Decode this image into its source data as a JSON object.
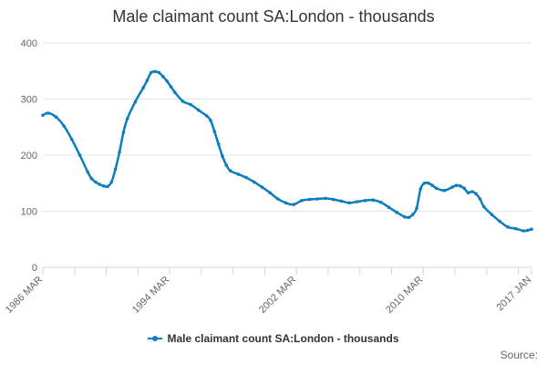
{
  "colors": {
    "series": "#0d7dbd",
    "grid": "#e6e6e6",
    "axis": "#ccd6eb",
    "text": "#666666"
  },
  "legend": {
    "label": "Male claimant count SA:London - thousands",
    "position": "bottom-center"
  },
  "credits": "Source:",
  "chart_data": {
    "type": "line",
    "title": "Male claimant count SA:London - thousands",
    "xlabel": "",
    "ylabel": "",
    "ylim": [
      0,
      400
    ],
    "yticks": [
      0,
      100,
      200,
      300,
      400
    ],
    "grid": true,
    "x_tick_labels": [
      "1986 MAR",
      "1994 MAR",
      "2002 MAR",
      "2010 MAR",
      "2017 JAN"
    ],
    "x_tick_values": [
      1986.17,
      1994.17,
      2002.17,
      2010.17,
      2017.0
    ],
    "series": [
      {
        "name": "Male claimant count SA:London - thousands",
        "x": [
          1986.17,
          1986.5,
          1987.0,
          1987.5,
          1988.0,
          1988.5,
          1989.0,
          1989.25,
          1989.5,
          1989.75,
          1990.0,
          1990.25,
          1990.5,
          1990.75,
          1991.0,
          1991.25,
          1991.5,
          1992.0,
          1992.5,
          1992.75,
          1993.0,
          1993.25,
          1993.5,
          1993.75,
          1994.0,
          1994.25,
          1994.5,
          1995.0,
          1995.5,
          1996.0,
          1996.5,
          1996.75,
          1997.0,
          1997.25,
          1997.5,
          1997.75,
          1998.0,
          1998.5,
          1999.0,
          1999.5,
          2000.0,
          2000.5,
          2001.0,
          2001.5,
          2002.0,
          2002.5,
          2003.0,
          2003.5,
          2004.0,
          2004.5,
          2005.0,
          2005.5,
          2006.0,
          2006.5,
          2007.0,
          2007.5,
          2008.0,
          2008.5,
          2009.0,
          2009.25,
          2009.5,
          2009.75,
          2010.0,
          2010.25,
          2010.5,
          2010.75,
          2011.0,
          2011.5,
          2012.0,
          2012.25,
          2012.5,
          2012.75,
          2013.0,
          2013.25,
          2013.5,
          2013.75,
          2014.0,
          2014.5,
          2015.0,
          2015.5,
          2016.0,
          2016.5,
          2016.75,
          2017.0
        ],
        "values": [
          271,
          275,
          268,
          252,
          228,
          200,
          170,
          158,
          152,
          148,
          145,
          144,
          152,
          175,
          205,
          240,
          265,
          295,
          320,
          333,
          347,
          349,
          347,
          340,
          332,
          322,
          312,
          296,
          290,
          280,
          270,
          262,
          242,
          220,
          198,
          182,
          172,
          166,
          160,
          152,
          143,
          133,
          122,
          115,
          112,
          119,
          121,
          122,
          123,
          121,
          118,
          115,
          117,
          119,
          120,
          116,
          107,
          98,
          90,
          89,
          94,
          105,
          140,
          150,
          150,
          146,
          141,
          137,
          143,
          146,
          145,
          141,
          133,
          135,
          131,
          122,
          108,
          94,
          82,
          72,
          69,
          65,
          66,
          68
        ]
      }
    ]
  }
}
